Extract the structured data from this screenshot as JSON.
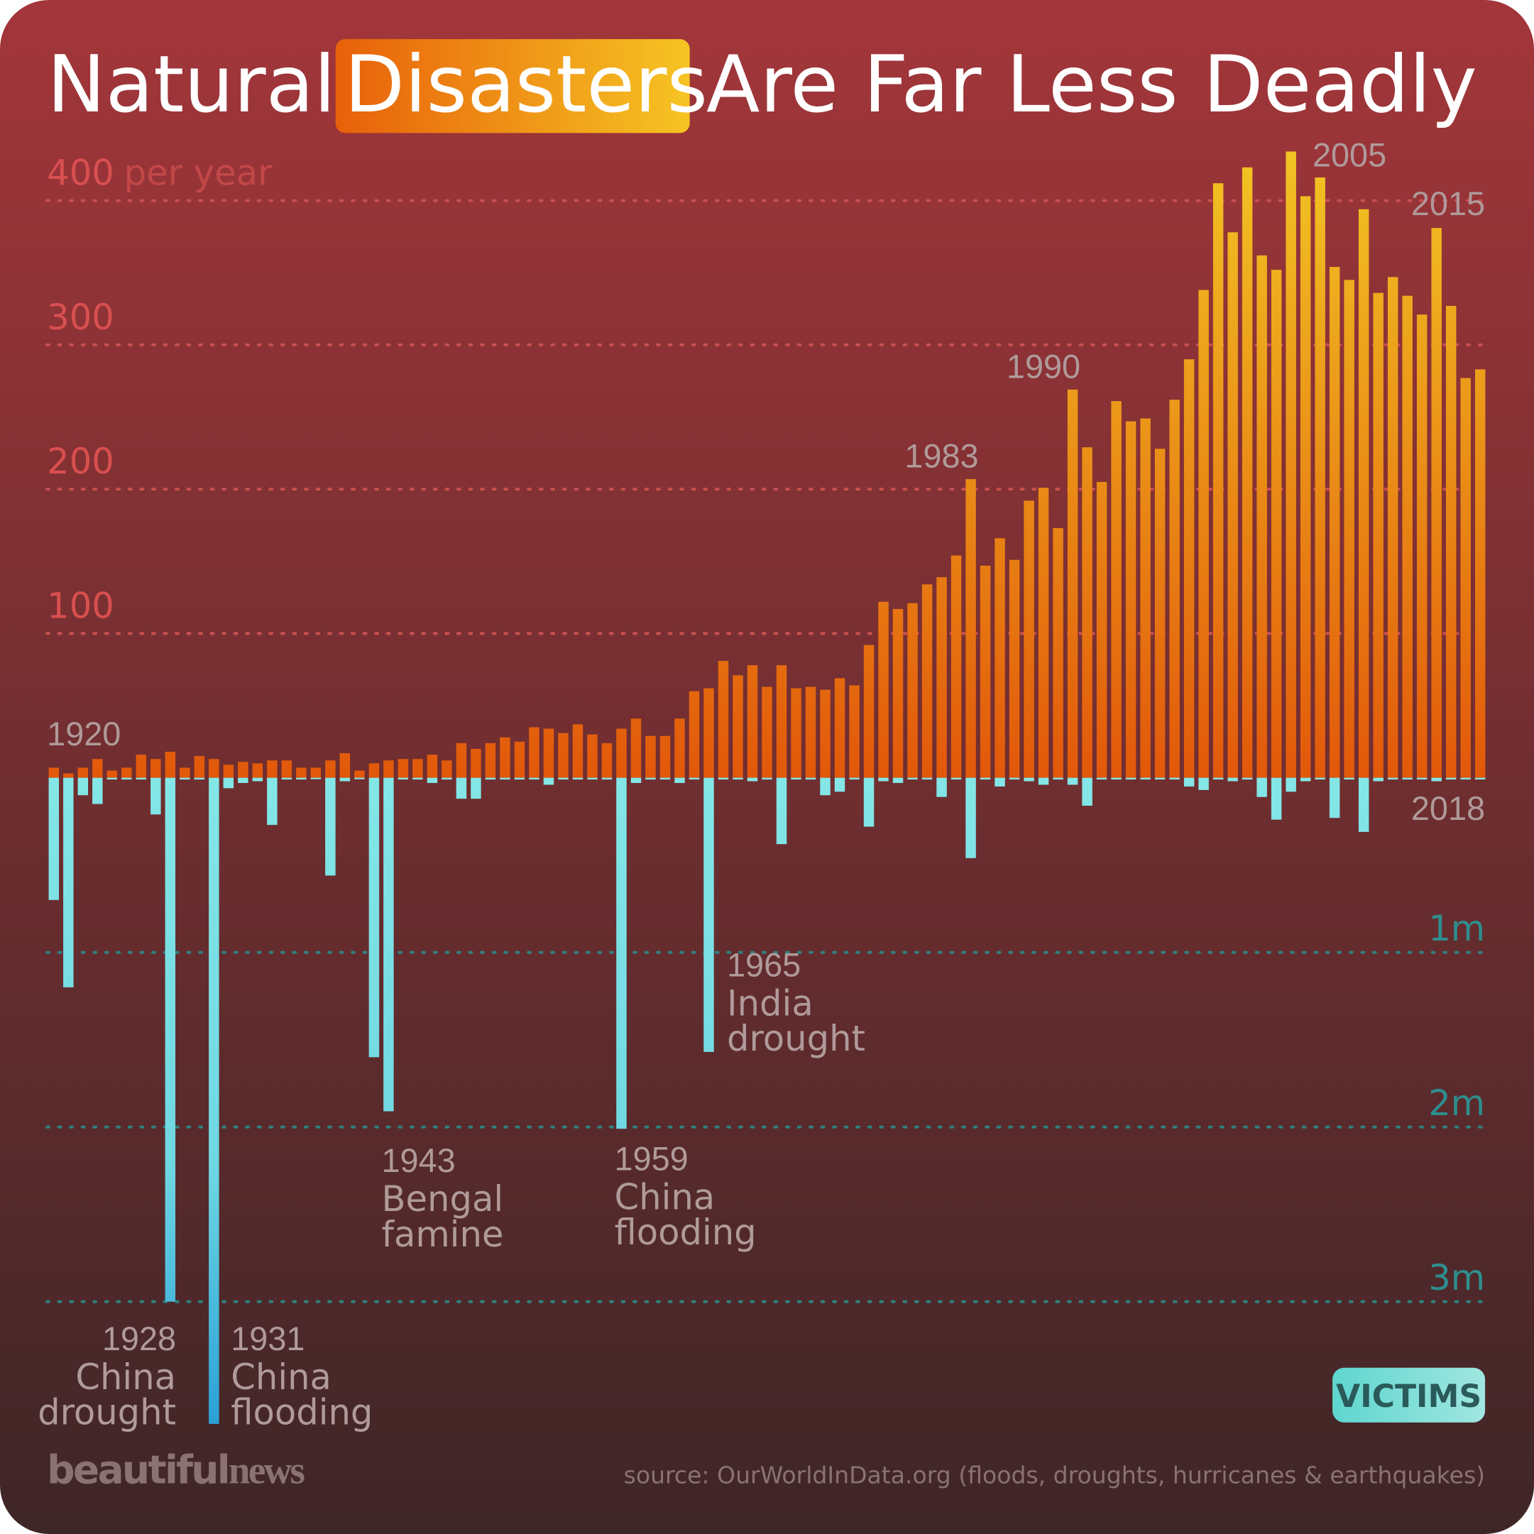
{
  "title": {
    "pre": "Natural",
    "highlight": "Disasters",
    "post": "Are Far Less Deadly"
  },
  "colors": {
    "bg_top": "#a3363a",
    "bg_bottom": "#3e2627",
    "disaster_top": "#f2c524",
    "disaster_bottom": "#e2580a",
    "victim_top": "#84e6e6",
    "victim_bottom": "#2aa0d6",
    "disaster_axis": "#d94f4f",
    "victim_axis": "#2e8e8e"
  },
  "legend": {
    "victims_badge": "VICTIMS"
  },
  "brand": {
    "logo_a": "beautiful",
    "logo_b": "news"
  },
  "source": "source: OurWorldInData.org (floods, droughts, hurricanes & earthquakes)",
  "chart_data": {
    "type": "bar",
    "x_first": 1920,
    "x_last": 2018,
    "disaster_axis": {
      "ticks": [
        {
          "value": 400,
          "label": "400",
          "unit": "per year"
        },
        {
          "value": 300,
          "label": "300"
        },
        {
          "value": 200,
          "label": "200"
        },
        {
          "value": 100,
          "label": "100"
        }
      ],
      "ylim": [
        0,
        430
      ]
    },
    "victim_axis": {
      "ticks": [
        {
          "value": 1,
          "label": "1m"
        },
        {
          "value": 2,
          "label": "2m"
        },
        {
          "value": 3,
          "label": "3m"
        }
      ],
      "unit": "millions",
      "ylim": [
        0,
        3.7
      ]
    },
    "series": [
      {
        "name": "disasters",
        "values": [
          7,
          3,
          7,
          13,
          5,
          7,
          16,
          13,
          18,
          7,
          15,
          13,
          9,
          11,
          10,
          12,
          12,
          7,
          7,
          12,
          17,
          5,
          10,
          12,
          13,
          13,
          16,
          12,
          24,
          20,
          24,
          28,
          25,
          35,
          34,
          31,
          37,
          30,
          24,
          34,
          41,
          29,
          29,
          41,
          60,
          62,
          81,
          71,
          78,
          63,
          78,
          62,
          63,
          61,
          69,
          64,
          92,
          122,
          117,
          121,
          134,
          139,
          154,
          207,
          147,
          166,
          151,
          192,
          201,
          173,
          269,
          229,
          205,
          261,
          247,
          249,
          228,
          262,
          290,
          338,
          412,
          378,
          423,
          362,
          352,
          434,
          403,
          416,
          354,
          345,
          394,
          336,
          347,
          334,
          321,
          381,
          327,
          277,
          283
        ]
      },
      {
        "name": "victims",
        "values": [
          0.7,
          1.2,
          0.1,
          0.15,
          0.01,
          0.01,
          0.01,
          0.21,
          3.0,
          0.01,
          0.01,
          3.7,
          0.06,
          0.03,
          0.02,
          0.27,
          0.01,
          0.01,
          0.0,
          0.56,
          0.02,
          0.0,
          1.6,
          1.91,
          0.01,
          0.01,
          0.03,
          0.01,
          0.12,
          0.12,
          0.01,
          0.01,
          0.01,
          0.01,
          0.04,
          0.01,
          0.01,
          0.01,
          0.01,
          2.01,
          0.03,
          0.01,
          0.01,
          0.03,
          0.01,
          1.57,
          0.01,
          0.01,
          0.02,
          0.01,
          0.38,
          0.01,
          0.01,
          0.1,
          0.08,
          0.01,
          0.28,
          0.02,
          0.03,
          0.01,
          0.01,
          0.11,
          0.01,
          0.46,
          0.01,
          0.05,
          0.01,
          0.02,
          0.04,
          0.01,
          0.04,
          0.16,
          0.01,
          0.01,
          0.01,
          0.01,
          0.01,
          0.01,
          0.05,
          0.07,
          0.01,
          0.02,
          0.01,
          0.11,
          0.24,
          0.08,
          0.02,
          0.01,
          0.23,
          0.01,
          0.31,
          0.02,
          0.01,
          0.01,
          0.01,
          0.02,
          0.01,
          0.01,
          0.01
        ]
      }
    ],
    "year_labels": [
      {
        "year": 1920,
        "label": "1920"
      },
      {
        "year": 1983,
        "label": "1983"
      },
      {
        "year": 1990,
        "label": "1990"
      },
      {
        "year": 2005,
        "label": "2005"
      },
      {
        "year": 2015,
        "label": "2015"
      },
      {
        "year": 2018,
        "label": "2018"
      }
    ],
    "annotations": [
      {
        "year": "1928",
        "line1": "China",
        "line2": "drought"
      },
      {
        "year": "1931",
        "line1": "China",
        "line2": "flooding"
      },
      {
        "year": "1943",
        "line1": "Bengal",
        "line2": "famine"
      },
      {
        "year": "1959",
        "line1": "China",
        "line2": "flooding"
      },
      {
        "year": "1965",
        "line1": "India",
        "line2": "drought"
      }
    ]
  }
}
